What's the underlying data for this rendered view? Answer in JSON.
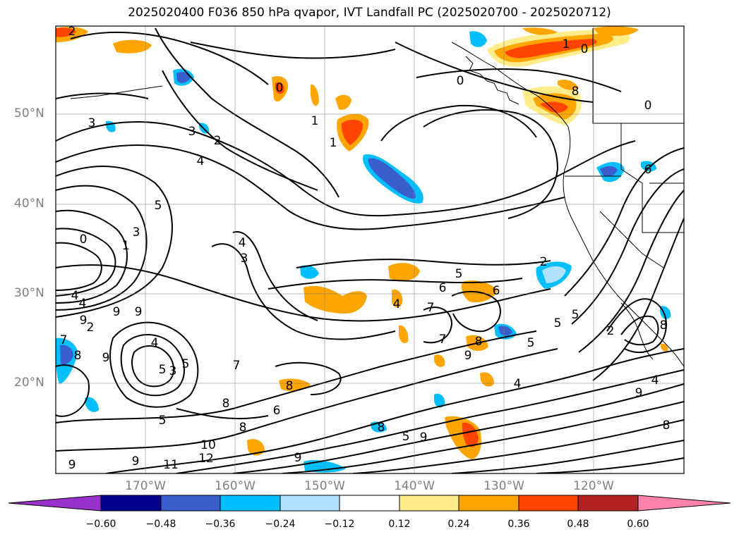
{
  "title": "2025020400 F036 850 hPa qvapor, IVT Landfall PC (2025020700 - 2025020712)",
  "lat_labels": [
    "50°N",
    "40°N",
    "30°N",
    "20°N"
  ],
  "lon_labels": [
    "170°W",
    "160°W",
    "150°W",
    "140°W",
    "130°W",
    "120°W"
  ],
  "colorbar": {
    "ticks": [
      "−0.60",
      "−0.48",
      "−0.36",
      "−0.24",
      "−0.12",
      "0.12",
      "0.24",
      "0.36",
      "0.48",
      "0.60"
    ],
    "colors": [
      "#9932cc",
      "#00008b",
      "#3a5fcd",
      "#00bfff",
      "#b0e2ff",
      "#ffffff",
      "#ffec8b",
      "#ffa500",
      "#ff4500",
      "#b22222",
      "#ff82ab"
    ]
  },
  "contour_labels": [
    "2",
    "0",
    "1",
    "0",
    "0",
    "8",
    "0",
    "1",
    "1",
    "3",
    "3",
    "2",
    "4",
    "0",
    "5",
    "3",
    "1",
    "4",
    "3",
    "5",
    "6",
    "6",
    "2",
    "5",
    "6",
    "4",
    "9",
    "9",
    "7",
    "4",
    "9",
    "2",
    "3",
    "5",
    "7",
    "8",
    "8",
    "6",
    "5",
    "8",
    "10",
    "12",
    "11",
    "9",
    "9",
    "4",
    "5",
    "5",
    "9",
    "8",
    "4",
    "8",
    "9",
    "8",
    "7",
    "9",
    "5",
    "5",
    "8",
    "2",
    "9",
    "4",
    "9",
    "8",
    "7",
    "4"
  ]
}
